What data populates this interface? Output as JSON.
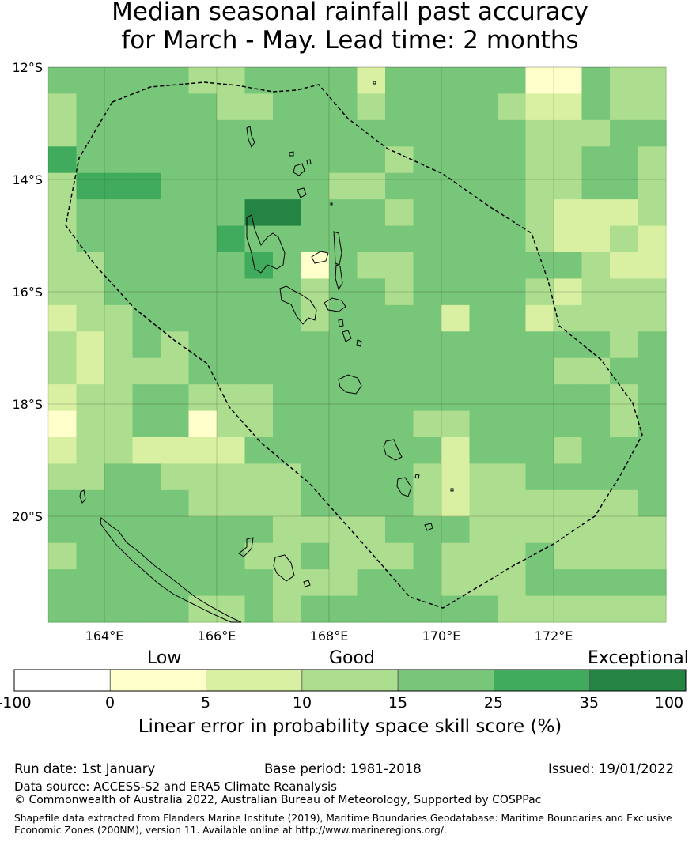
{
  "title": {
    "line1": "Median seasonal rainfall past accuracy",
    "line2": "for March - May. Lead time: 2 months"
  },
  "map": {
    "x_ticks": [
      "164°E",
      "166°E",
      "168°E",
      "170°E",
      "172°E"
    ],
    "y_ticks": [
      "12°S",
      "14°S",
      "16°S",
      "18°S",
      "20°S"
    ],
    "grid_categories": [
      "4444433444424444411433",
      "3444443344434444322433",
      "3444444444444444433344",
      "5444444444443444433443",
      "3555444444334444433443",
      "3444444664443444432223",
      "3444445444444444432232",
      "3344444541433444444322",
      "3344444443443444432333",
      "2334444443444424423333",
      "3234344444444444444434",
      "3233344444444444443344",
      "2334433344444444444434",
      "1334413344444334444434",
      "2332222444444424443444",
      "3344333334444323344444",
      "4444433334444323333334",
      "4444444433334443333333",
      "3444444334333433343333",
      "4444444433344433344444",
      "4444433434444444333333"
    ],
    "category_colors": [
      "#ffffff",
      "#ffffcc",
      "#d9f0a3",
      "#addd8e",
      "#78c679",
      "#41ab5d",
      "#238443"
    ]
  },
  "colorbar": {
    "tick_labels": [
      "-100",
      "0",
      "5",
      "10",
      "15",
      "25",
      "35",
      "100"
    ],
    "category_labels": {
      "low": "Low",
      "good": "Good",
      "exceptional": "Exceptional"
    },
    "label": "Linear error in probability space skill score (%)"
  },
  "footer": {
    "run_date": "Run date: 1st January",
    "base_period": "Base period: 1981-2018",
    "issued": "Issued: 19/01/2022",
    "data_source": "Data source: ACCESS-S2 and ERA5 Climate Reanalysis",
    "copyright": "© Commonwealth of Australia 2022, Australian Bureau of Meteorology, Supported by COSPPac",
    "shapefile_line1": "Shapefile data extracted from Flanders Marine Institute (2019), Maritime Boundaries Geodatabase: Maritime Boundaries and Exclusive",
    "shapefile_line2": "Economic Zones (200NM), version 11. Available online at http://www.marineregions.org/."
  }
}
